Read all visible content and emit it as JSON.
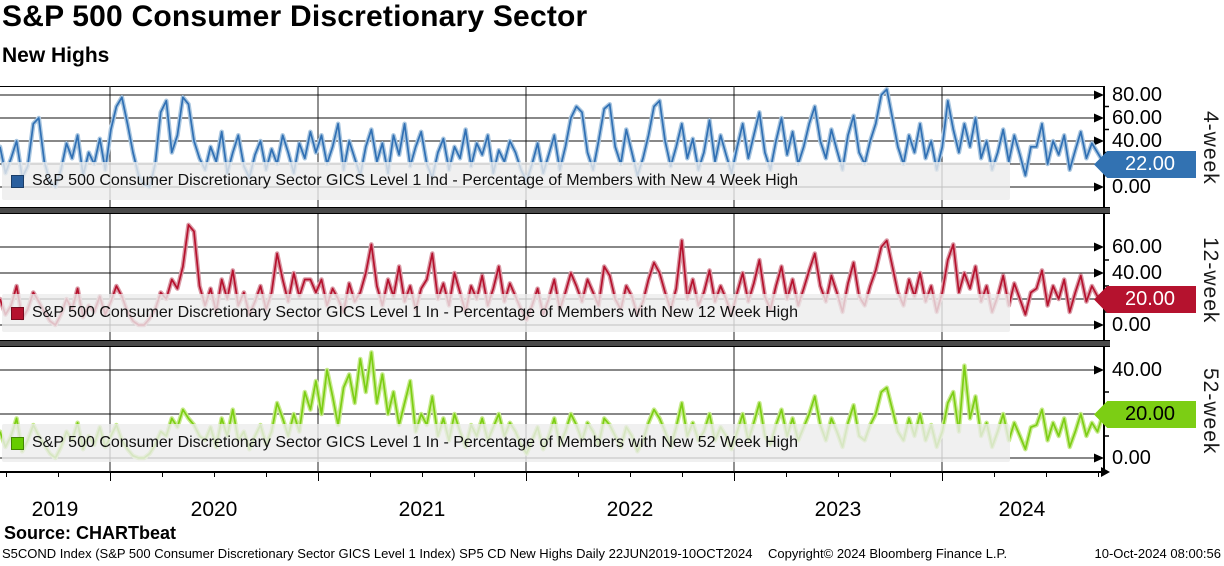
{
  "header": {
    "title": "S&P 500 Consumer Discretionary Sector",
    "subtitle": "New Highs"
  },
  "panels": [
    {
      "label": "4-week",
      "legend": "S&P 500 Consumer Discretionary Sector GICS Level 1 Ind - Percentage of Members with New 4 Week High",
      "last_value": "22.00",
      "color": "#3070B4",
      "color_light": "#A9C6E0",
      "marker_color": "#2A5F9E",
      "box_bg": "#3272B2",
      "box_text": "#FFFFFF",
      "yticks": [
        "80.00",
        "60.00",
        "40.00",
        "0.00"
      ]
    },
    {
      "label": "12-week",
      "legend": "S&P 500 Consumer Discretionary Sector GICS Level 1 In - Percentage of Members with New 12 Week High",
      "last_value": "20.00",
      "color": "#B5122E",
      "color_light": "#DA9AA6",
      "marker_color": "#B5122E",
      "box_bg": "#B5122E",
      "box_text": "#FFFFFF",
      "yticks": [
        "60.00",
        "40.00",
        "0.00"
      ]
    },
    {
      "label": "52-week",
      "legend": "S&P 500 Consumer Discretionary Sector GICS Level 1 In - Percentage of Members with New 52 Week High",
      "last_value": "20.00",
      "color": "#7CCE14",
      "color_light": "#C8EA8F",
      "marker_color": "#66CC00",
      "box_bg": "#7CCE14",
      "box_text": "#000000",
      "yticks": [
        "40.00",
        "0.00"
      ]
    }
  ],
  "x_axis": {
    "years": [
      "2019",
      "2020",
      "2021",
      "2022",
      "2023",
      "2024"
    ]
  },
  "footer": {
    "source": "Source: CHARTbeat",
    "left": "S5COND Index (S&P 500 Consumer Discretionary Sector GICS Level 1 Index) SP5 CD New Highs  Daily 22JUN2019-10OCT2024",
    "copyright": "Copyright© 2024 Bloomberg Finance L.P.",
    "datetime": "10-Oct-2024 08:00:56"
  },
  "chart_data": [
    {
      "type": "line",
      "name": "Percentage of Members with New 4 Week High",
      "x_range": [
        "22JUN2019",
        "10OCT2024"
      ],
      "ylim": [
        0,
        88
      ],
      "ytick_values": [
        0,
        20,
        40,
        60,
        80
      ],
      "last_value": 22.0,
      "values": [
        35,
        12,
        25,
        40,
        8,
        18,
        55,
        60,
        22,
        5,
        0,
        15,
        38,
        25,
        45,
        10,
        30,
        20,
        42,
        15,
        50,
        70,
        78,
        55,
        30,
        10,
        2,
        0,
        20,
        65,
        75,
        30,
        45,
        78,
        72,
        40,
        25,
        15,
        35,
        22,
        48,
        12,
        30,
        45,
        18,
        8,
        28,
        40,
        15,
        33,
        20,
        45,
        30,
        12,
        38,
        25,
        48,
        30,
        45,
        20,
        35,
        55,
        15,
        40,
        25,
        10,
        35,
        50,
        22,
        38,
        12,
        45,
        28,
        55,
        18,
        35,
        48,
        20,
        8,
        30,
        42,
        15,
        35,
        25,
        50,
        18,
        38,
        28,
        45,
        12,
        32,
        22,
        40,
        30,
        15,
        5,
        20,
        38,
        12,
        28,
        45,
        15,
        35,
        60,
        70,
        65,
        30,
        15,
        40,
        68,
        72,
        35,
        20,
        50,
        30,
        10,
        25,
        45,
        70,
        75,
        40,
        18,
        35,
        55,
        25,
        42,
        15,
        30,
        58,
        22,
        45,
        28,
        12,
        35,
        55,
        25,
        45,
        65,
        30,
        15,
        40,
        60,
        28,
        48,
        20,
        35,
        55,
        70,
        40,
        25,
        50,
        32,
        15,
        45,
        62,
        30,
        20,
        40,
        55,
        80,
        85,
        60,
        35,
        20,
        45,
        30,
        55,
        25,
        40,
        15,
        35,
        75,
        50,
        30,
        55,
        35,
        60,
        25,
        40,
        15,
        30,
        50,
        22,
        45,
        28,
        10,
        35,
        35,
        55,
        20,
        40,
        28,
        45,
        15,
        32,
        48,
        25,
        38,
        30,
        22
      ]
    },
    {
      "type": "line",
      "name": "Percentage of Members with New 12 Week High",
      "x_range": [
        "22JUN2019",
        "10OCT2024"
      ],
      "ylim": [
        0,
        84
      ],
      "ytick_values": [
        0,
        20,
        40,
        60
      ],
      "last_value": 20.0,
      "values": [
        20,
        8,
        15,
        30,
        5,
        12,
        25,
        18,
        10,
        3,
        0,
        8,
        20,
        12,
        28,
        6,
        15,
        10,
        22,
        8,
        18,
        30,
        22,
        10,
        3,
        0,
        0,
        5,
        12,
        25,
        20,
        35,
        28,
        45,
        77,
        72,
        30,
        15,
        28,
        10,
        35,
        20,
        42,
        15,
        25,
        8,
        18,
        30,
        12,
        25,
        55,
        35,
        18,
        40,
        22,
        35,
        35,
        25,
        35,
        15,
        28,
        20,
        10,
        32,
        18,
        25,
        40,
        62,
        30,
        15,
        35,
        22,
        45,
        18,
        30,
        12,
        28,
        35,
        55,
        20,
        32,
        15,
        40,
        25,
        10,
        30,
        20,
        38,
        15,
        28,
        45,
        18,
        32,
        22,
        12,
        4,
        15,
        28,
        8,
        20,
        35,
        12,
        25,
        40,
        30,
        18,
        35,
        25,
        15,
        45,
        38,
        20,
        12,
        30,
        22,
        8,
        18,
        35,
        48,
        40,
        25,
        12,
        28,
        65,
        20,
        35,
        15,
        25,
        42,
        18,
        30,
        20,
        8,
        25,
        40,
        18,
        32,
        50,
        22,
        12,
        30,
        45,
        20,
        35,
        15,
        28,
        42,
        55,
        30,
        18,
        38,
        25,
        10,
        32,
        48,
        22,
        15,
        30,
        42,
        60,
        65,
        45,
        25,
        15,
        35,
        22,
        40,
        18,
        30,
        10,
        25,
        50,
        62,
        25,
        40,
        28,
        45,
        18,
        30,
        10,
        22,
        38,
        15,
        32,
        20,
        8,
        25,
        28,
        42,
        15,
        30,
        20,
        35,
        10,
        25,
        38,
        18,
        30,
        22,
        20
      ]
    },
    {
      "type": "line",
      "name": "Percentage of Members with New 52 Week High",
      "x_range": [
        "22JUN2019",
        "10OCT2024"
      ],
      "ylim": [
        0,
        51
      ],
      "ytick_values": [
        0,
        20,
        40
      ],
      "last_value": 20.0,
      "values": [
        12,
        5,
        10,
        18,
        3,
        8,
        15,
        10,
        6,
        2,
        0,
        5,
        12,
        8,
        16,
        4,
        10,
        6,
        14,
        5,
        10,
        15,
        8,
        4,
        1,
        0,
        0,
        2,
        6,
        12,
        10,
        18,
        14,
        22,
        18,
        15,
        10,
        8,
        14,
        5,
        18,
        10,
        22,
        8,
        12,
        4,
        10,
        15,
        6,
        12,
        25,
        18,
        10,
        20,
        12,
        30,
        22,
        35,
        20,
        40,
        28,
        15,
        32,
        38,
        25,
        45,
        30,
        48,
        25,
        38,
        20,
        30,
        15,
        25,
        35,
        12,
        20,
        15,
        28,
        10,
        18,
        8,
        20,
        12,
        5,
        15,
        10,
        18,
        8,
        14,
        20,
        10,
        16,
        12,
        6,
        2,
        8,
        14,
        4,
        10,
        18,
        6,
        12,
        20,
        15,
        8,
        16,
        12,
        6,
        18,
        15,
        10,
        5,
        14,
        10,
        3,
        8,
        16,
        22,
        18,
        12,
        5,
        14,
        25,
        10,
        16,
        8,
        12,
        20,
        8,
        14,
        10,
        4,
        12,
        20,
        8,
        16,
        25,
        10,
        6,
        15,
        22,
        10,
        18,
        8,
        14,
        20,
        28,
        15,
        8,
        18,
        12,
        5,
        16,
        24,
        10,
        8,
        15,
        20,
        30,
        32,
        22,
        12,
        8,
        18,
        10,
        20,
        8,
        15,
        5,
        12,
        25,
        30,
        12,
        42,
        18,
        28,
        10,
        16,
        5,
        12,
        20,
        8,
        16,
        10,
        4,
        14,
        15,
        22,
        8,
        16,
        10,
        18,
        5,
        12,
        20,
        10,
        16,
        12,
        20
      ]
    }
  ]
}
